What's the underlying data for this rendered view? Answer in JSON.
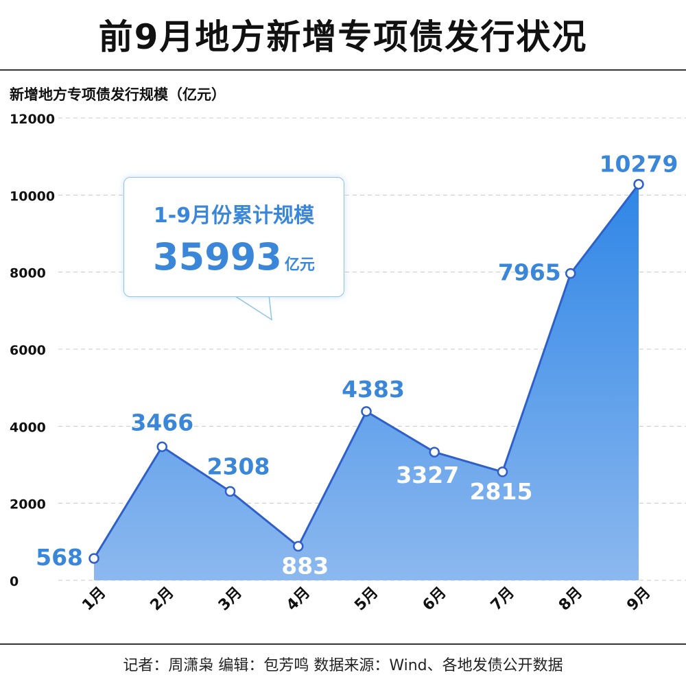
{
  "header": {
    "title": "前9月地方新增专项债发行状况"
  },
  "footer": {
    "source": "记者：周潇枭 编辑：包芳鸣 数据来源：Wind、各地发债公开数据"
  },
  "callout": {
    "label": "1-9月份累计规模",
    "value": "35993",
    "unit": "亿元"
  },
  "chart_data": {
    "type": "area",
    "ylabel": "新增地方专项债发行规模（亿元）",
    "xlabel": "",
    "categories": [
      "1月",
      "2月",
      "3月",
      "4月",
      "5月",
      "6月",
      "7月",
      "8月",
      "9月"
    ],
    "values": [
      568,
      3466,
      2308,
      883,
      4383,
      3327,
      2815,
      7965,
      10279
    ],
    "ylim": [
      0,
      12000
    ],
    "yticks": [
      0,
      2000,
      4000,
      6000,
      8000,
      10000,
      12000
    ],
    "grid": true,
    "colors": {
      "line": "#2f5fc8",
      "area_top": "#2f86e6",
      "area_bottom": "#8cb8ef",
      "label_blue": "#3a87da",
      "label_white": "#ffffff"
    }
  }
}
